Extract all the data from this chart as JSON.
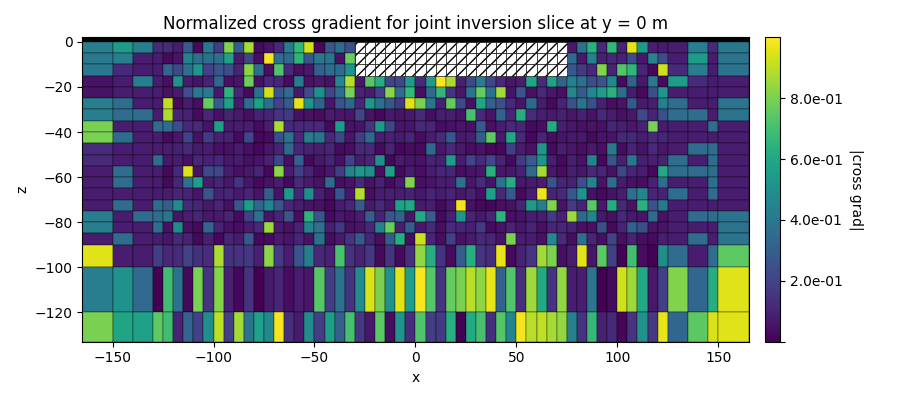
{
  "title": "Normalized cross gradient for joint inversion slice at y = 0 m",
  "xlabel": "x",
  "ylabel": "z",
  "colorbar_label": "|cross grad|",
  "cmap": "viridis",
  "vmin": 0.0,
  "vmax": 1.0,
  "xlim": [
    -165,
    165
  ],
  "ylim": [
    -133,
    2
  ],
  "xticks": [
    -150,
    -100,
    -50,
    0,
    50,
    100,
    150
  ],
  "yticks": [
    0,
    -20,
    -40,
    -60,
    -80,
    -100,
    -120
  ],
  "colorbar_ticks": [
    0.0,
    0.2,
    0.4,
    0.6,
    0.8
  ],
  "colorbar_ticklabels": [
    "",
    "2.0e-01",
    "4.0e-01",
    "6.0e-01",
    "8.0e-01"
  ],
  "figsize": [
    9.0,
    4.0
  ],
  "dpi": 100
}
